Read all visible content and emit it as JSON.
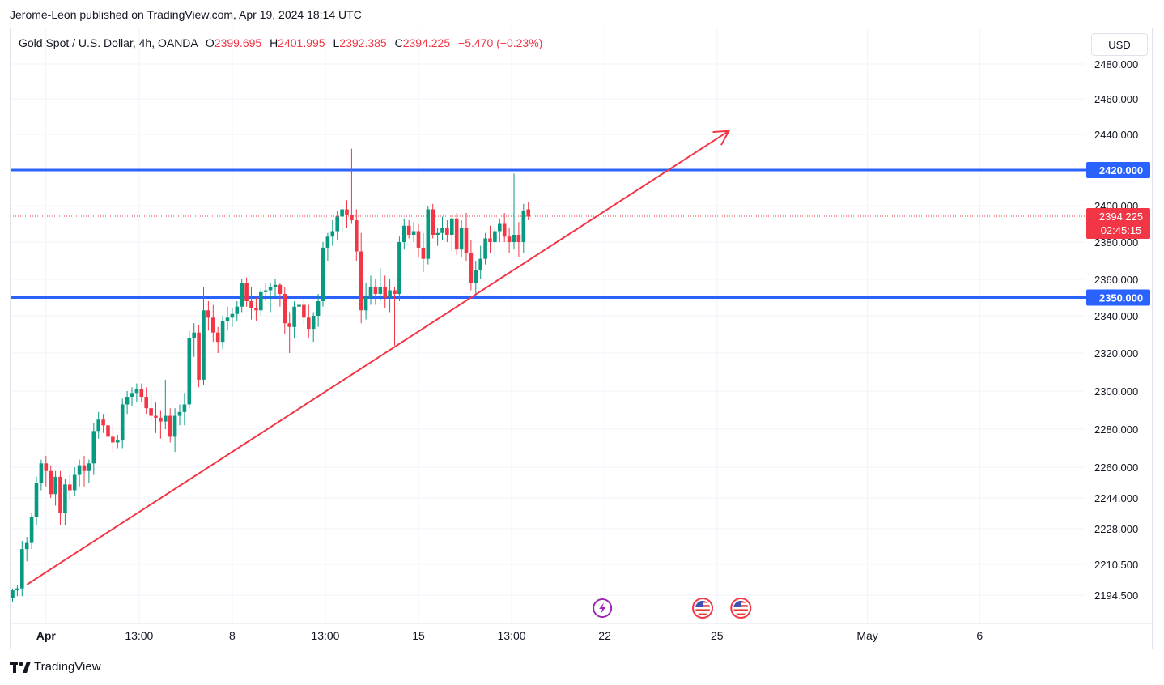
{
  "header": {
    "published_text": "Jerome-Leon published on TradingView.com, Apr 19, 2024 18:14 UTC"
  },
  "legend": {
    "symbol": "Gold Spot / U.S. Dollar, 4h, OANDA",
    "open_label": "O",
    "open": "2399.695",
    "high_label": "H",
    "high": "2401.995",
    "low_label": "L",
    "low": "2392.385",
    "close_label": "C",
    "close": "2394.225",
    "change": "−5.470 (−0.23%)"
  },
  "currency_button": "USD",
  "footer": {
    "brand": "TradingView"
  },
  "colors": {
    "up": "#089981",
    "down": "#f23645",
    "level_line": "#2962ff",
    "trend_line": "#f23645",
    "grid": "#f0f3fa",
    "text": "#131722"
  },
  "chart_data": {
    "type": "candlestick",
    "symbol": "Gold Spot / U.S. Dollar",
    "timeframe": "4h",
    "source": "OANDA",
    "yaxis_ticks": [
      {
        "value": 2480,
        "label": "2480.000"
      },
      {
        "value": 2460,
        "label": "2460.000"
      },
      {
        "value": 2440,
        "label": "2440.000"
      },
      {
        "value": 2400,
        "label": "2400.000"
      },
      {
        "value": 2380,
        "label": "2380.000"
      },
      {
        "value": 2360,
        "label": "2360.000"
      },
      {
        "value": 2340,
        "label": "2340.000"
      },
      {
        "value": 2320,
        "label": "2320.000"
      },
      {
        "value": 2300,
        "label": "2300.000"
      },
      {
        "value": 2280,
        "label": "2280.000"
      },
      {
        "value": 2260,
        "label": "2260.000"
      },
      {
        "value": 2244,
        "label": "2244.000"
      },
      {
        "value": 2228,
        "label": "2228.000"
      },
      {
        "value": 2210.5,
        "label": "2210.500"
      },
      {
        "value": 2194.5,
        "label": "2194.500"
      }
    ],
    "xaxis_ticks": [
      {
        "bar": 7,
        "label": "Apr",
        "bold": true
      },
      {
        "bar": 26.5,
        "label": "13:00"
      },
      {
        "bar": 46,
        "label": "8"
      },
      {
        "bar": 65.5,
        "label": "13:00"
      },
      {
        "bar": 85,
        "label": "15"
      },
      {
        "bar": 104.5,
        "label": "13:00"
      },
      {
        "bar": 124,
        "label": "22"
      },
      {
        "bar": 147.5,
        "label": "25"
      },
      {
        "bar": 179,
        "label": "May"
      },
      {
        "bar": 202.5,
        "label": "6"
      }
    ],
    "price_levels": [
      {
        "value": 2420,
        "label": "2420.000",
        "color": "#2962ff"
      },
      {
        "value": 2350,
        "label": "2350.000",
        "color": "#2962ff"
      }
    ],
    "last_price": {
      "value": 2394.225,
      "label": "2394.225",
      "countdown": "02:45:15",
      "color": "#f23645"
    },
    "trendline": {
      "from": {
        "bar": 3,
        "price": 2200
      },
      "to": {
        "bar": 150,
        "price": 2442
      },
      "arrow": true,
      "color": "#f23645"
    },
    "events": [
      {
        "bar": 123.5,
        "type": "lightning"
      },
      {
        "bar": 144.5,
        "type": "us-flag"
      },
      {
        "bar": 152.5,
        "type": "us-flag"
      }
    ],
    "candles": [
      [
        2193,
        2198,
        2191,
        2197
      ],
      [
        2197,
        2200,
        2194,
        2198
      ],
      [
        2198,
        2222,
        2194,
        2218
      ],
      [
        2218,
        2224,
        2212,
        2221
      ],
      [
        2221,
        2236,
        2218,
        2234
      ],
      [
        2234,
        2255,
        2230,
        2252
      ],
      [
        2252,
        2264,
        2248,
        2262
      ],
      [
        2262,
        2266,
        2250,
        2258
      ],
      [
        2258,
        2261,
        2244,
        2246
      ],
      [
        2246,
        2258,
        2240,
        2255
      ],
      [
        2255,
        2258,
        2230,
        2236
      ],
      [
        2236,
        2254,
        2230,
        2251
      ],
      [
        2251,
        2256,
        2243,
        2248
      ],
      [
        2248,
        2260,
        2245,
        2256
      ],
      [
        2256,
        2264,
        2250,
        2261
      ],
      [
        2261,
        2266,
        2250,
        2258
      ],
      [
        2258,
        2264,
        2252,
        2262
      ],
      [
        2262,
        2283,
        2256,
        2279
      ],
      [
        2279,
        2289,
        2275,
        2285
      ],
      [
        2285,
        2288,
        2278,
        2282
      ],
      [
        2282,
        2290,
        2272,
        2276
      ],
      [
        2276,
        2282,
        2268,
        2273
      ],
      [
        2273,
        2277,
        2270,
        2274
      ],
      [
        2274,
        2296,
        2270,
        2293
      ],
      [
        2293,
        2300,
        2288,
        2297
      ],
      [
        2297,
        2302,
        2292,
        2299
      ],
      [
        2299,
        2304,
        2294,
        2301
      ],
      [
        2301,
        2304,
        2294,
        2297
      ],
      [
        2297,
        2302,
        2288,
        2291
      ],
      [
        2291,
        2298,
        2284,
        2287
      ],
      [
        2287,
        2294,
        2278,
        2286
      ],
      [
        2286,
        2290,
        2275,
        2284
      ],
      [
        2284,
        2306,
        2280,
        2287
      ],
      [
        2287,
        2291,
        2273,
        2276
      ],
      [
        2276,
        2291,
        2268,
        2287
      ],
      [
        2287,
        2293,
        2282,
        2289
      ],
      [
        2289,
        2299,
        2282,
        2293
      ],
      [
        2293,
        2332,
        2291,
        2328
      ],
      [
        2328,
        2336,
        2318,
        2331
      ],
      [
        2331,
        2335,
        2302,
        2306
      ],
      [
        2306,
        2356,
        2303,
        2343
      ],
      [
        2343,
        2348,
        2332,
        2339
      ],
      [
        2339,
        2346,
        2326,
        2331
      ],
      [
        2331,
        2334,
        2320,
        2326
      ],
      [
        2326,
        2340,
        2322,
        2337
      ],
      [
        2337,
        2345,
        2332,
        2339
      ],
      [
        2339,
        2344,
        2334,
        2341
      ],
      [
        2341,
        2348,
        2337,
        2345
      ],
      [
        2345,
        2360,
        2342,
        2358
      ],
      [
        2358,
        2361,
        2345,
        2348
      ],
      [
        2348,
        2356,
        2338,
        2344
      ],
      [
        2344,
        2350,
        2337,
        2343
      ],
      [
        2343,
        2355,
        2340,
        2353
      ],
      [
        2353,
        2358,
        2348,
        2354
      ],
      [
        2354,
        2358,
        2342,
        2356
      ],
      [
        2356,
        2360,
        2350,
        2357
      ],
      [
        2357,
        2358,
        2345,
        2352
      ],
      [
        2352,
        2356,
        2330,
        2336
      ],
      [
        2336,
        2342,
        2320,
        2334
      ],
      [
        2334,
        2348,
        2328,
        2345
      ],
      [
        2345,
        2352,
        2338,
        2346
      ],
      [
        2346,
        2350,
        2335,
        2339
      ],
      [
        2339,
        2346,
        2328,
        2333
      ],
      [
        2333,
        2342,
        2326,
        2340
      ],
      [
        2340,
        2352,
        2334,
        2348
      ],
      [
        2348,
        2380,
        2345,
        2377
      ],
      [
        2377,
        2385,
        2370,
        2383
      ],
      [
        2383,
        2392,
        2378,
        2386
      ],
      [
        2386,
        2397,
        2381,
        2394
      ],
      [
        2394,
        2400,
        2385,
        2398
      ],
      [
        2398,
        2403,
        2388,
        2395
      ],
      [
        2395,
        2432,
        2390,
        2392
      ],
      [
        2392,
        2398,
        2370,
        2375
      ],
      [
        2375,
        2385,
        2336,
        2343
      ],
      [
        2343,
        2358,
        2338,
        2350
      ],
      [
        2350,
        2362,
        2346,
        2356
      ],
      [
        2356,
        2360,
        2346,
        2352
      ],
      [
        2352,
        2366,
        2348,
        2356
      ],
      [
        2356,
        2362,
        2344,
        2350
      ],
      [
        2350,
        2360,
        2342,
        2354
      ],
      [
        2354,
        2356,
        2324,
        2352
      ],
      [
        2352,
        2383,
        2348,
        2380
      ],
      [
        2380,
        2393,
        2376,
        2389
      ],
      [
        2389,
        2392,
        2382,
        2384
      ],
      [
        2384,
        2391,
        2380,
        2386
      ],
      [
        2386,
        2390,
        2372,
        2377
      ],
      [
        2377,
        2385,
        2364,
        2371
      ],
      [
        2371,
        2400,
        2368,
        2398
      ],
      [
        2398,
        2401,
        2382,
        2384
      ],
      [
        2384,
        2388,
        2378,
        2385
      ],
      [
        2385,
        2394,
        2381,
        2388
      ],
      [
        2388,
        2392,
        2380,
        2384
      ],
      [
        2384,
        2395,
        2375,
        2393
      ],
      [
        2393,
        2396,
        2373,
        2376
      ],
      [
        2376,
        2392,
        2372,
        2388
      ],
      [
        2388,
        2396,
        2370,
        2374
      ],
      [
        2374,
        2381,
        2354,
        2358
      ],
      [
        2358,
        2370,
        2352,
        2365
      ],
      [
        2365,
        2378,
        2360,
        2371
      ],
      [
        2371,
        2385,
        2368,
        2382
      ],
      [
        2382,
        2389,
        2374,
        2380
      ],
      [
        2380,
        2389,
        2372,
        2386
      ],
      [
        2386,
        2393,
        2380,
        2390
      ],
      [
        2390,
        2396,
        2380,
        2383
      ],
      [
        2383,
        2388,
        2374,
        2380
      ],
      [
        2380,
        2418,
        2376,
        2384
      ],
      [
        2384,
        2391,
        2372,
        2380
      ],
      [
        2380,
        2401,
        2374,
        2397
      ],
      [
        2398,
        2402,
        2392,
        2394
      ]
    ]
  }
}
